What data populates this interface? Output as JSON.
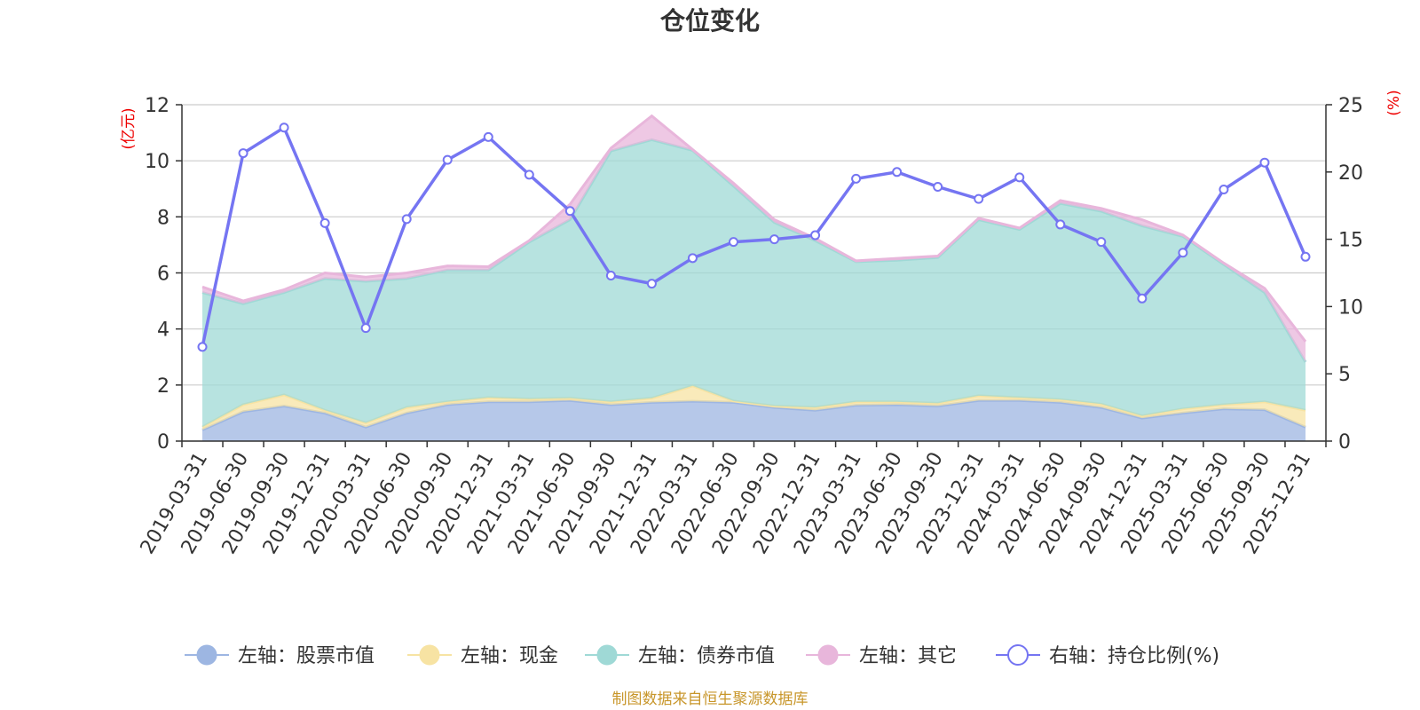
{
  "chart_data": {
    "type": "area",
    "title": "仓位变化",
    "source": "制图数据来自恒生聚源数据库",
    "left_unit": "(亿元)",
    "right_unit": "(%)",
    "ylim_left": [
      0,
      12
    ],
    "ylim_right": [
      0,
      25
    ],
    "left_ticks": [
      "0",
      "2",
      "4",
      "6",
      "8",
      "10",
      "12"
    ],
    "right_ticks": [
      "0",
      "5",
      "10",
      "15",
      "20",
      "25"
    ],
    "categories": [
      "2019-03-31",
      "2019-06-30",
      "2019-09-30",
      "2019-12-31",
      "2020-03-31",
      "2020-06-30",
      "2020-09-30",
      "2020-12-31",
      "2021-03-31",
      "2021-06-30",
      "2021-09-30",
      "2021-12-31",
      "2022-03-31",
      "2022-06-30",
      "2022-09-30",
      "2022-12-31",
      "2023-03-31",
      "2023-06-30",
      "2023-09-30",
      "2023-12-31",
      "2024-03-31",
      "2024-06-30",
      "2024-09-30",
      "2024-12-31",
      "2025-03-31",
      "2025-06-30",
      "2025-09-30",
      "2025-12-31"
    ],
    "stacked_series": [
      {
        "name": "左轴：股票市值",
        "color": "#9db6e2",
        "values": [
          0.4,
          1.05,
          1.25,
          1.0,
          0.5,
          1.0,
          1.3,
          1.4,
          1.4,
          1.45,
          1.3,
          1.38,
          1.42,
          1.38,
          1.2,
          1.1,
          1.28,
          1.3,
          1.25,
          1.45,
          1.45,
          1.38,
          1.2,
          0.82,
          1.0,
          1.15,
          1.12,
          0.5
        ]
      },
      {
        "name": "左轴：现金",
        "color": "#f7e3a3",
        "values": [
          0.1,
          0.25,
          0.4,
          0.1,
          0.15,
          0.2,
          0.1,
          0.15,
          0.1,
          0.08,
          0.1,
          0.15,
          0.55,
          0.05,
          0.05,
          0.1,
          0.12,
          0.1,
          0.1,
          0.17,
          0.1,
          0.1,
          0.12,
          0.08,
          0.15,
          0.15,
          0.28,
          0.6
        ]
      },
      {
        "name": "左轴：债券市值",
        "color": "#9fd9d6",
        "values": [
          4.8,
          3.6,
          3.65,
          4.7,
          5.05,
          4.6,
          4.7,
          4.55,
          5.6,
          6.37,
          8.95,
          9.22,
          8.4,
          7.67,
          6.55,
          5.95,
          5.0,
          5.05,
          5.2,
          6.28,
          6.0,
          7.0,
          6.88,
          6.78,
          6.15,
          5.0,
          3.9,
          1.72
        ]
      },
      {
        "name": "左轴：其它",
        "color": "#e8b6db",
        "values": [
          0.2,
          0.1,
          0.1,
          0.2,
          0.15,
          0.2,
          0.15,
          0.12,
          0.05,
          0.55,
          0.1,
          0.85,
          0.03,
          0.1,
          0.1,
          0.08,
          0.03,
          0.07,
          0.05,
          0.05,
          0.05,
          0.1,
          0.1,
          0.22,
          0.05,
          0.05,
          0.15,
          0.73
        ]
      }
    ],
    "line_series": {
      "name": "右轴：持仓比例(%)",
      "color": "#7575f2",
      "values": [
        7.0,
        21.4,
        23.3,
        16.2,
        8.4,
        16.5,
        20.9,
        22.6,
        19.8,
        17.1,
        12.3,
        11.7,
        13.6,
        14.8,
        15.0,
        15.3,
        19.5,
        20.0,
        18.9,
        18.0,
        19.6,
        16.1,
        14.8,
        10.6,
        14.0,
        18.7,
        20.7,
        13.7
      ]
    }
  },
  "legend": [
    {
      "label": "左轴：股票市值",
      "type": "area",
      "color": "#9db6e2"
    },
    {
      "label": "左轴：现金",
      "type": "area",
      "color": "#f7e3a3"
    },
    {
      "label": "左轴：债券市值",
      "type": "area",
      "color": "#9fd9d6"
    },
    {
      "label": "左轴：其它",
      "type": "area",
      "color": "#e8b6db"
    },
    {
      "label": "右轴：持仓比例(%)",
      "type": "line",
      "color": "#7575f2"
    }
  ]
}
